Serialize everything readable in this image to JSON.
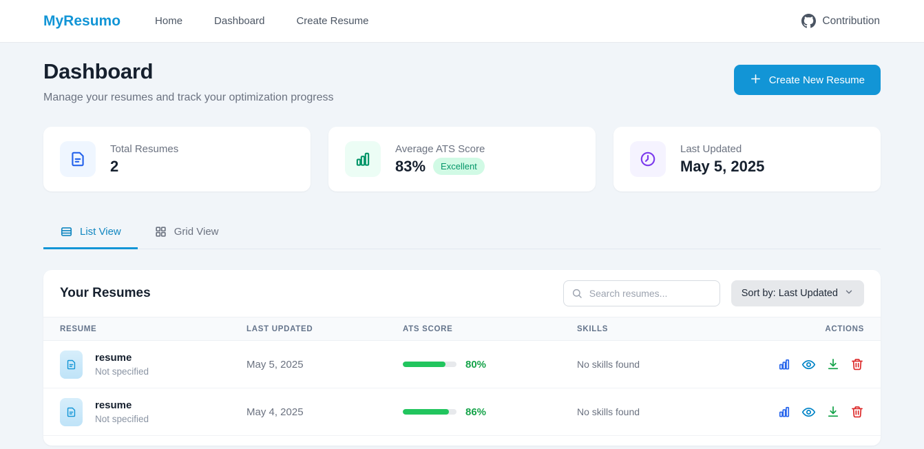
{
  "header": {
    "brand": "MyResumo",
    "nav": [
      {
        "label": "Home"
      },
      {
        "label": "Dashboard"
      },
      {
        "label": "Create Resume"
      }
    ],
    "contribution_label": "Contribution"
  },
  "page": {
    "title": "Dashboard",
    "subtitle": "Manage your resumes and track your optimization progress",
    "create_button_label": "Create New Resume"
  },
  "stats": [
    {
      "label": "Total Resumes",
      "value": "2",
      "icon": "document-icon"
    },
    {
      "label": "Average ATS Score",
      "value": "83%",
      "badge": "Excellent",
      "icon": "bar-chart-icon"
    },
    {
      "label": "Last Updated",
      "value": "May 5, 2025",
      "icon": "clock-icon"
    }
  ],
  "tabs": [
    {
      "label": "List View",
      "icon": "list-view-icon",
      "active": true
    },
    {
      "label": "Grid View",
      "icon": "grid-view-icon",
      "active": false
    }
  ],
  "resumes_panel": {
    "title": "Your Resumes",
    "search_placeholder": "Search resumes...",
    "sort_label": "Sort by: Last Updated",
    "columns": [
      "RESUME",
      "LAST UPDATED",
      "ATS SCORE",
      "SKILLS",
      "ACTIONS"
    ],
    "rows": [
      {
        "name": "resume",
        "subtitle": "Not specified",
        "last_updated": "May 5, 2025",
        "ats_score": 80,
        "ats_score_label": "80%",
        "skills": "No skills found"
      },
      {
        "name": "resume",
        "subtitle": "Not specified",
        "last_updated": "May 4, 2025",
        "ats_score": 86,
        "ats_score_label": "86%",
        "skills": "No skills found"
      }
    ],
    "action_icons": [
      "analyze-chart-icon",
      "preview-eye-icon",
      "download-icon",
      "delete-trash-icon"
    ]
  },
  "colors": {
    "brand_blue": "#1295d6",
    "progress_green": "#22c55e",
    "score_text_green": "#16a34a",
    "badge_green_bg": "#d1fae5",
    "badge_green_text": "#059669",
    "stat_blue": "#2563eb",
    "stat_green": "#059669",
    "stat_purple": "#7c3aed",
    "delete_red": "#dc2626",
    "page_bg": "#f1f5f9"
  }
}
